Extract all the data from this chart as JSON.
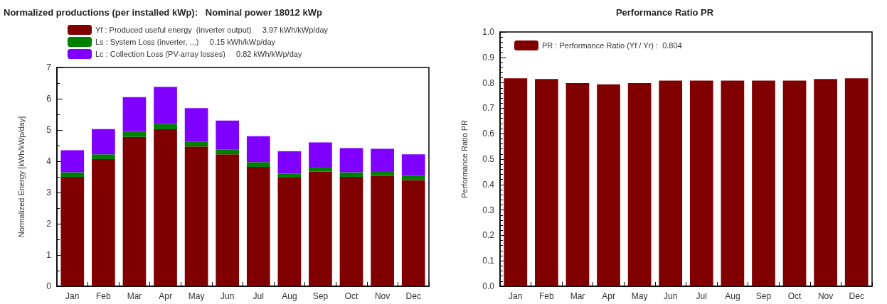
{
  "chart_data": [
    {
      "type": "bar",
      "title": "Normalized productions (per installed kWp):   Nominal power 18012 kWp",
      "ylabel": "Normalized Energy [kWh/kWp/day]",
      "categories": [
        "Jan",
        "Feb",
        "Mar",
        "Apr",
        "May",
        "Jun",
        "Jul",
        "Aug",
        "Sep",
        "Oct",
        "Nov",
        "Dec"
      ],
      "stacked": true,
      "series": [
        {
          "name": "Yf : Produced useful energy  (inverter output)     3.97 kWh/kWp/day",
          "color": "#800000",
          "values": [
            3.5,
            4.07,
            4.78,
            5.02,
            4.47,
            4.22,
            3.82,
            3.48,
            3.67,
            3.5,
            3.53,
            3.4
          ]
        },
        {
          "name": "Ls : System Loss (inverter, ...)     0.15 kWh/kWp/day",
          "color": "#008000",
          "values": [
            0.15,
            0.15,
            0.17,
            0.18,
            0.15,
            0.15,
            0.15,
            0.12,
            0.15,
            0.15,
            0.15,
            0.14
          ]
        },
        {
          "name": "Lc : Collection Loss (PV-array losses)     0.82 kWh/kWp/day",
          "color": "#8000ff",
          "values": [
            0.7,
            0.81,
            1.1,
            1.18,
            1.08,
            0.93,
            0.83,
            0.72,
            0.78,
            0.77,
            0.72,
            0.68
          ]
        }
      ],
      "ylim": [
        0,
        7
      ],
      "yticks": [
        0,
        1,
        2,
        3,
        4,
        5,
        6,
        7
      ],
      "grid": false,
      "legend": "top"
    },
    {
      "type": "bar",
      "title": "Performance Ratio PR",
      "ylabel": "Performance Ratio PR",
      "categories": [
        "Jan",
        "Feb",
        "Mar",
        "Apr",
        "May",
        "Jun",
        "Jul",
        "Aug",
        "Sep",
        "Oct",
        "Nov",
        "Dec"
      ],
      "series": [
        {
          "name": "PR : Performance Ratio (Yf / Yr) :  0.804",
          "color": "#800000",
          "values": [
            0.818,
            0.815,
            0.799,
            0.794,
            0.799,
            0.809,
            0.809,
            0.809,
            0.809,
            0.809,
            0.815,
            0.818
          ]
        }
      ],
      "ylim": [
        0,
        1
      ],
      "yticks": [
        {
          "value": 0,
          "label": "0.0"
        },
        {
          "value": 0.1,
          "label": "0.1"
        },
        {
          "value": 0.2,
          "label": "0.2"
        },
        {
          "value": 0.3,
          "label": "0.3"
        },
        {
          "value": 0.4,
          "label": "0.4"
        },
        {
          "value": 0.5,
          "label": "0.5"
        },
        {
          "value": 0.6,
          "label": "0.6"
        },
        {
          "value": 0.7,
          "label": "0.7"
        },
        {
          "value": 0.8,
          "label": "0.8"
        },
        {
          "value": 0.9,
          "label": "0.9"
        },
        {
          "value": 1,
          "label": "1.0"
        }
      ],
      "grid": false,
      "legend": "top left"
    }
  ]
}
